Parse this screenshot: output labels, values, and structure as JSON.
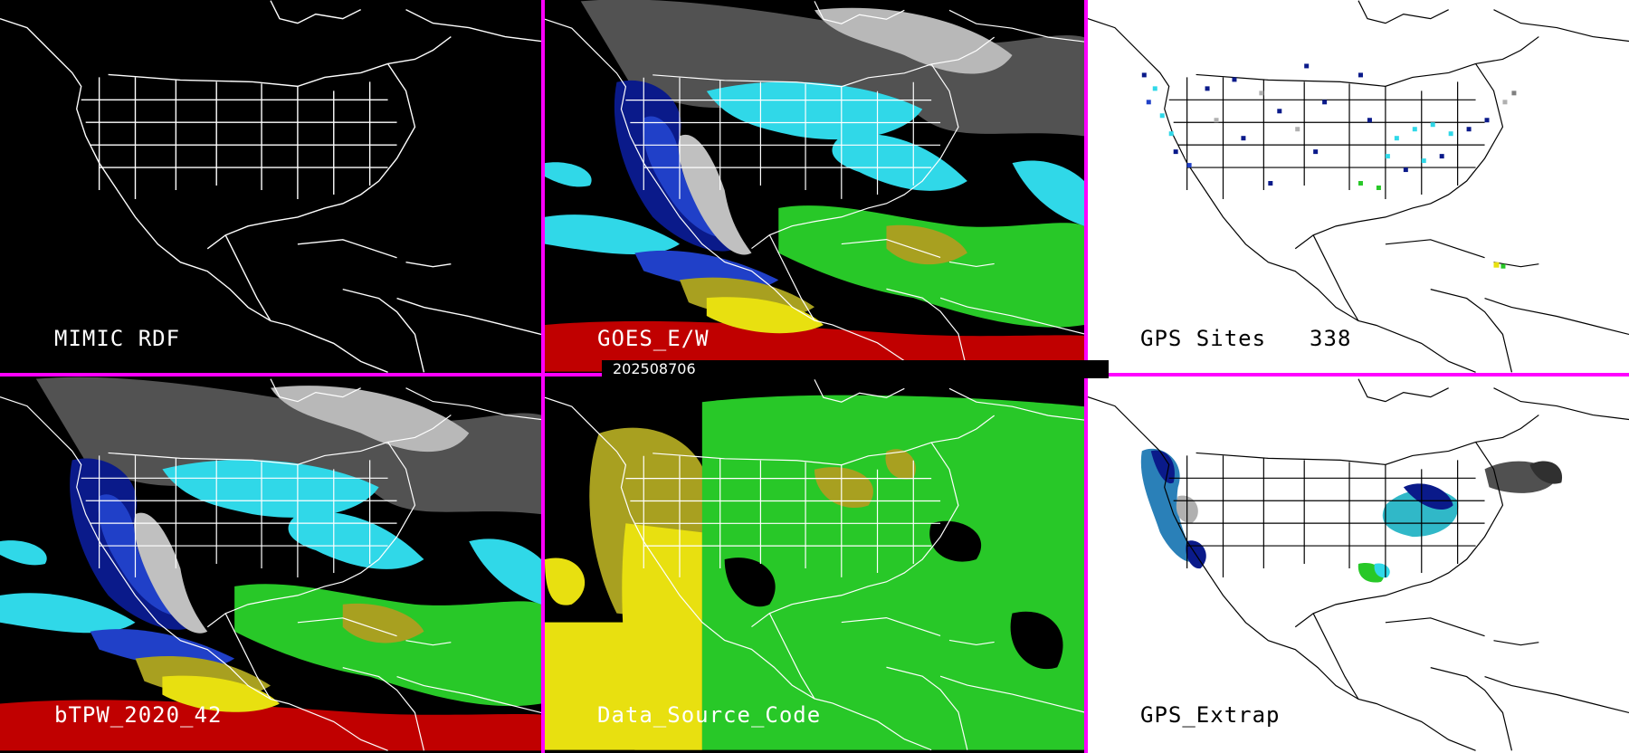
{
  "panels": {
    "mimic_rdf": {
      "label": "MIMIC RDF",
      "background": "#000000"
    },
    "goes_ew": {
      "label": "GOES_E/W",
      "background": "#000000"
    },
    "gps_sites": {
      "label": "GPS Sites",
      "count": "338",
      "background": "#ffffff"
    },
    "btpw": {
      "label": "bTPW_2020_42",
      "background": "#000000"
    },
    "data_source": {
      "label": "Data_Source_Code",
      "background": "#000000"
    },
    "gps_extrap": {
      "label": "GPS_Extrap",
      "background": "#ffffff"
    }
  },
  "timestamp": "202508706",
  "colors": {
    "separator": "#ff00ff",
    "map_lines_dark": "#ffffff",
    "map_lines_light": "#000000",
    "tpw_navy": "#0a1a8a",
    "tpw_blue": "#2040c8",
    "tpw_cyan": "#30d8e8",
    "tpw_green": "#28c828",
    "tpw_olive": "#a8a020",
    "tpw_yellow": "#e8e010",
    "tpw_red": "#c00000",
    "tpw_gray": "#b0b0b0"
  }
}
